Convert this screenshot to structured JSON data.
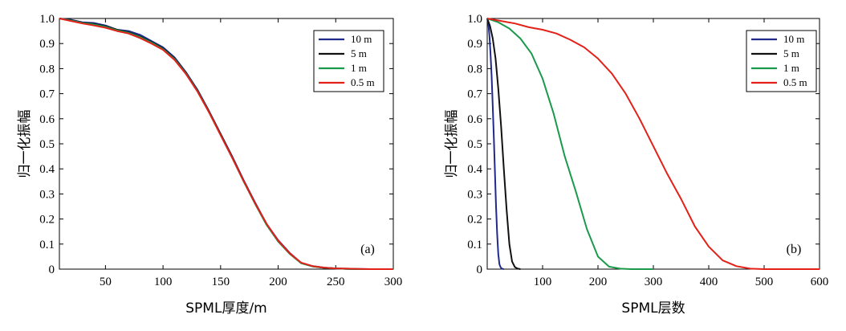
{
  "chart_data": [
    {
      "type": "line",
      "panel_label": "(a)",
      "xlabel": "SPML厚度/m",
      "ylabel": "归一化振幅",
      "xlim": [
        10,
        300
      ],
      "ylim": [
        0,
        1.0
      ],
      "xticks": [
        50,
        100,
        150,
        200,
        250,
        300
      ],
      "yticks": [
        0,
        0.1,
        0.2,
        0.3,
        0.4,
        0.5,
        0.6,
        0.7,
        0.8,
        0.9,
        1.0
      ],
      "ytick_labels": [
        "0",
        "0.1",
        "0.2",
        "0.3",
        "0.4",
        "0.5",
        "0.6",
        "0.7",
        "0.8",
        "0.9",
        "1.0"
      ],
      "grid": false,
      "legend_position": "top-right",
      "series": [
        {
          "name": "10 m",
          "color": "#1f2a8c",
          "x": [
            10,
            20,
            30,
            40,
            50,
            60,
            70,
            80,
            90,
            100,
            110,
            120,
            130,
            140,
            150,
            160,
            170,
            180,
            190,
            200,
            210,
            220,
            230,
            240,
            250,
            260,
            270,
            280,
            290,
            300
          ],
          "y": [
            1.0,
            0.995,
            0.985,
            0.982,
            0.972,
            0.955,
            0.95,
            0.935,
            0.91,
            0.885,
            0.845,
            0.785,
            0.715,
            0.63,
            0.54,
            0.45,
            0.355,
            0.265,
            0.18,
            0.115,
            0.065,
            0.025,
            0.012,
            0.006,
            0.003,
            0.002,
            0.001,
            0.0,
            0.0,
            0.0
          ]
        },
        {
          "name": "5 m",
          "color": "#111111",
          "x": [
            10,
            20,
            30,
            40,
            50,
            60,
            70,
            80,
            90,
            100,
            110,
            120,
            130,
            140,
            150,
            160,
            170,
            180,
            190,
            200,
            210,
            220,
            230,
            240,
            250,
            260,
            270,
            280,
            290,
            300
          ],
          "y": [
            1.0,
            0.993,
            0.983,
            0.978,
            0.969,
            0.955,
            0.945,
            0.928,
            0.906,
            0.88,
            0.84,
            0.782,
            0.712,
            0.628,
            0.538,
            0.447,
            0.352,
            0.262,
            0.178,
            0.112,
            0.062,
            0.024,
            0.011,
            0.005,
            0.003,
            0.001,
            0.0,
            0.0,
            0.0,
            0.0
          ]
        },
        {
          "name": "1 m",
          "color": "#1a9a4a",
          "x": [
            10,
            20,
            30,
            40,
            50,
            60,
            70,
            80,
            90,
            100,
            110,
            120,
            130,
            140,
            150,
            160,
            170,
            180,
            190,
            200,
            210,
            220,
            230,
            240,
            250,
            260,
            270,
            280,
            290,
            300
          ],
          "y": [
            1.0,
            0.992,
            0.982,
            0.976,
            0.967,
            0.953,
            0.943,
            0.926,
            0.904,
            0.878,
            0.838,
            0.78,
            0.71,
            0.626,
            0.535,
            0.445,
            0.35,
            0.26,
            0.176,
            0.11,
            0.061,
            0.024,
            0.011,
            0.005,
            0.003,
            0.001,
            0.0,
            0.0,
            0.0,
            0.0
          ]
        },
        {
          "name": "0.5 m",
          "color": "#e32119",
          "x": [
            10,
            20,
            30,
            40,
            50,
            60,
            70,
            80,
            90,
            100,
            110,
            120,
            130,
            140,
            150,
            160,
            170,
            180,
            190,
            200,
            210,
            220,
            230,
            240,
            250,
            260,
            270,
            280,
            290,
            300
          ],
          "y": [
            1.0,
            0.99,
            0.98,
            0.972,
            0.963,
            0.95,
            0.94,
            0.922,
            0.9,
            0.875,
            0.835,
            0.778,
            0.708,
            0.625,
            0.535,
            0.445,
            0.352,
            0.262,
            0.18,
            0.113,
            0.063,
            0.026,
            0.012,
            0.006,
            0.003,
            0.002,
            0.001,
            0.0,
            0.0,
            0.0
          ]
        }
      ]
    },
    {
      "type": "line",
      "panel_label": "(b)",
      "xlabel": "SPML层数",
      "ylabel": "归一化振幅",
      "xlim": [
        0,
        600
      ],
      "ylim": [
        0,
        1.0
      ],
      "xticks": [
        100,
        200,
        300,
        400,
        500,
        600
      ],
      "yticks": [
        0,
        0.1,
        0.2,
        0.3,
        0.4,
        0.5,
        0.6,
        0.7,
        0.8,
        0.9,
        1.0
      ],
      "ytick_labels": [
        "0",
        "0.1",
        "0.2",
        "0.3",
        "0.4",
        "0.5",
        "0.6",
        "0.7",
        "0.8",
        "0.9",
        "1.0"
      ],
      "grid": false,
      "legend_position": "top-right",
      "series": [
        {
          "name": "10 m",
          "color": "#1f2a8c",
          "x": [
            0,
            2,
            4,
            6,
            8,
            10,
            12,
            14,
            16,
            18,
            20,
            22,
            24,
            26,
            28,
            30
          ],
          "y": [
            1.0,
            0.98,
            0.93,
            0.86,
            0.77,
            0.65,
            0.52,
            0.38,
            0.25,
            0.14,
            0.06,
            0.02,
            0.008,
            0.003,
            0.001,
            0.0
          ]
        },
        {
          "name": "5 m",
          "color": "#111111",
          "x": [
            0,
            5,
            10,
            15,
            20,
            25,
            30,
            35,
            40,
            45,
            50,
            55,
            60
          ],
          "y": [
            1.0,
            0.97,
            0.92,
            0.84,
            0.72,
            0.57,
            0.4,
            0.24,
            0.1,
            0.03,
            0.008,
            0.002,
            0.0
          ]
        },
        {
          "name": "1 m",
          "color": "#1a9a4a",
          "x": [
            0,
            20,
            40,
            60,
            80,
            100,
            120,
            140,
            160,
            180,
            200,
            220,
            240,
            260,
            280,
            300
          ],
          "y": [
            1.0,
            0.985,
            0.96,
            0.92,
            0.86,
            0.76,
            0.62,
            0.45,
            0.31,
            0.16,
            0.05,
            0.01,
            0.002,
            0.0,
            0.0,
            0.0
          ]
        },
        {
          "name": "0.5 m",
          "color": "#e32119",
          "x": [
            0,
            25,
            50,
            75,
            100,
            125,
            150,
            175,
            200,
            225,
            250,
            275,
            300,
            325,
            350,
            375,
            400,
            425,
            450,
            475,
            500,
            525,
            550,
            575,
            600
          ],
          "y": [
            1.0,
            0.99,
            0.98,
            0.965,
            0.955,
            0.94,
            0.915,
            0.885,
            0.84,
            0.78,
            0.7,
            0.6,
            0.49,
            0.38,
            0.28,
            0.17,
            0.09,
            0.035,
            0.012,
            0.002,
            0.0,
            0.0,
            0.0,
            0.0,
            0.0
          ]
        }
      ]
    }
  ]
}
